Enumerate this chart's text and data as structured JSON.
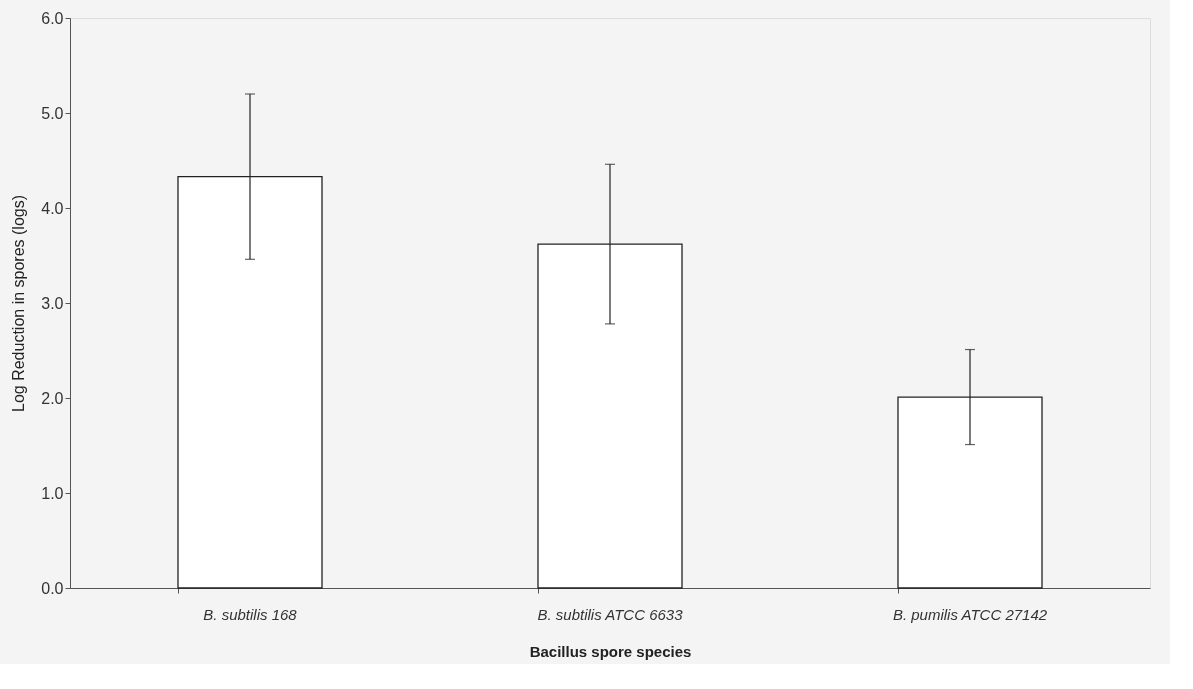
{
  "chart_data": {
    "type": "bar",
    "xlabel": "Bacillus spore species",
    "ylabel": "Log Reduction in spores (logs)",
    "categories": [
      "B. subtilis 168",
      "B. subtilis ATCC 6633",
      "B. pumilis ATCC 27142"
    ],
    "values": [
      4.33,
      3.62,
      2.01
    ],
    "errors": [
      0.87,
      0.84,
      0.5
    ],
    "colors": [
      "#ffffff",
      "#ffffff",
      "#ffffff"
    ],
    "ylim": [
      0,
      6
    ],
    "yticks": [
      {
        "value": 0,
        "label": "0.0"
      },
      {
        "value": 1,
        "label": "1.0"
      },
      {
        "value": 2,
        "label": "2.0"
      },
      {
        "value": 3,
        "label": "3.0"
      },
      {
        "value": 4,
        "label": "4.0"
      },
      {
        "value": 5,
        "label": "5.0"
      },
      {
        "value": 6,
        "label": "6.0"
      }
    ],
    "grid": false
  }
}
